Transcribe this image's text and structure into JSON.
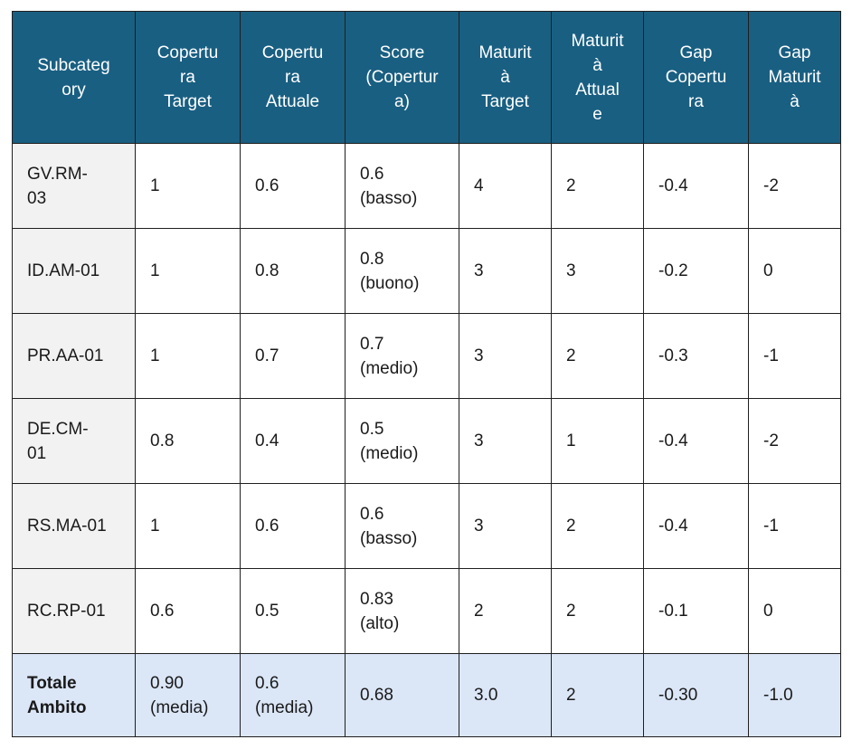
{
  "headers": [
    "Subcateg\nory",
    "Copertu\nra\nTarget",
    "Copertu\nra\nAttuale",
    "Score\n(Copertur\na)",
    "Maturit\nà\nTarget",
    "Maturit\nà\nAttual\ne",
    "Gap\nCopertu\nra",
    "Gap\nMaturit\nà"
  ],
  "rows": [
    [
      "GV.RM-\n03",
      "1",
      "0.6",
      "0.6\n(basso)",
      "4",
      "2",
      "-0.4",
      "-2"
    ],
    [
      "ID.AM-01",
      "1",
      "0.8",
      "0.8\n(buono)",
      "3",
      "3",
      "-0.2",
      "0"
    ],
    [
      "PR.AA-01",
      "1",
      "0.7",
      "0.7\n(medio)",
      "3",
      "2",
      "-0.3",
      "-1"
    ],
    [
      "DE.CM-\n01",
      "0.8",
      "0.4",
      "0.5\n(medio)",
      "3",
      "1",
      "-0.4",
      "-2"
    ],
    [
      "RS.MA-01",
      "1",
      "0.6",
      "0.6\n(basso)",
      "3",
      "2",
      "-0.4",
      "-1"
    ],
    [
      "RC.RP-01",
      "0.6",
      "0.5",
      "0.83\n(alto)",
      "2",
      "2",
      "-0.1",
      "0"
    ]
  ],
  "total": [
    "Totale\nAmbito",
    "0.90\n(media)",
    "0.6\n(media)",
    "0.68",
    "3.0",
    "2",
    "-0.30",
    "-1.0"
  ]
}
